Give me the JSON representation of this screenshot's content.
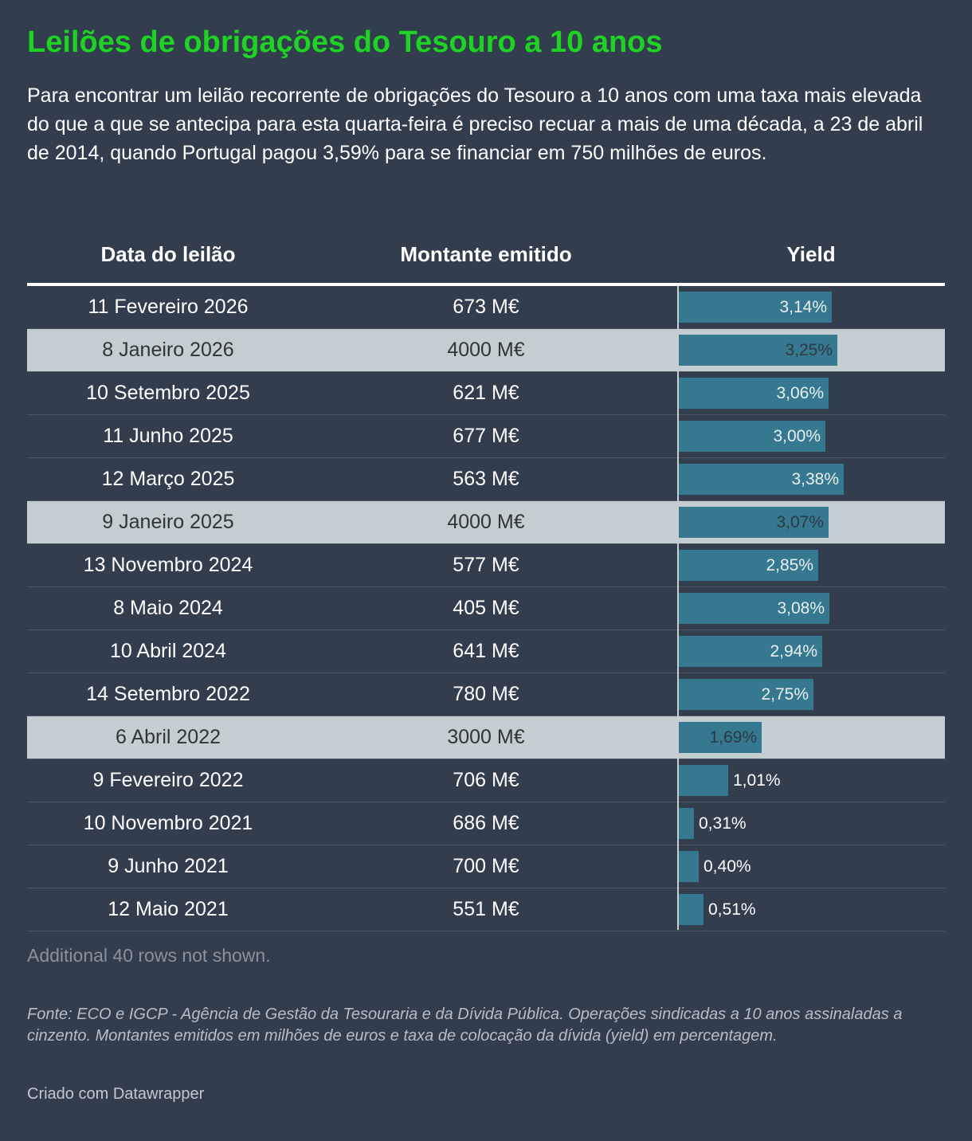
{
  "title": "Leilões de obrigações do Tesouro a 10 anos",
  "intro": "Para encontrar um leilão recorrente de obrigações do Tesouro a 10 anos com uma taxa mais elevada do que a que se antecipa para esta quarta-feira é preciso recuar a mais de uma década, a 23 de abril de 2014, quando Portugal pagou 3,59% para se financiar em 750 milhões de euros.",
  "table": {
    "headers": {
      "date": "Data do leilão",
      "amount": "Montante emitido",
      "yield": "Yield"
    },
    "footer": "Additional 40 rows not shown."
  },
  "colors": {
    "title": "#1ed324",
    "bar": "#35788f",
    "highlight_row": "#c2ced1",
    "background": "#323d4d"
  },
  "chart_data": {
    "type": "table",
    "columns": [
      "Data do leilão",
      "Montante emitido",
      "Yield"
    ],
    "yield_max_for_bars": 3.59,
    "rows": [
      {
        "date": "11 Fevereiro 2026",
        "amount": "673 M€",
        "yield": 3.14,
        "yield_label": "3,14%",
        "syndicated": false
      },
      {
        "date": "8 Janeiro 2026",
        "amount": "4000 M€",
        "yield": 3.25,
        "yield_label": "3,25%",
        "syndicated": true
      },
      {
        "date": "10 Setembro 2025",
        "amount": "621 M€",
        "yield": 3.06,
        "yield_label": "3,06%",
        "syndicated": false
      },
      {
        "date": "11 Junho 2025",
        "amount": "677 M€",
        "yield": 3.0,
        "yield_label": "3,00%",
        "syndicated": false
      },
      {
        "date": "12 Março 2025",
        "amount": "563 M€",
        "yield": 3.38,
        "yield_label": "3,38%",
        "syndicated": false
      },
      {
        "date": "9 Janeiro 2025",
        "amount": "4000 M€",
        "yield": 3.07,
        "yield_label": "3,07%",
        "syndicated": true
      },
      {
        "date": "13 Novembro 2024",
        "amount": "577 M€",
        "yield": 2.85,
        "yield_label": "2,85%",
        "syndicated": false
      },
      {
        "date": "8 Maio 2024",
        "amount": "405 M€",
        "yield": 3.08,
        "yield_label": "3,08%",
        "syndicated": false
      },
      {
        "date": "10 Abril 2024",
        "amount": "641 M€",
        "yield": 2.94,
        "yield_label": "2,94%",
        "syndicated": false
      },
      {
        "date": "14 Setembro 2022",
        "amount": "780 M€",
        "yield": 2.75,
        "yield_label": "2,75%",
        "syndicated": false
      },
      {
        "date": "6 Abril 2022",
        "amount": "3000 M€",
        "yield": 1.69,
        "yield_label": "1,69%",
        "syndicated": true
      },
      {
        "date": "9 Fevereiro 2022",
        "amount": "706 M€",
        "yield": 1.01,
        "yield_label": "1,01%",
        "syndicated": false
      },
      {
        "date": "10 Novembro 2021",
        "amount": "686 M€",
        "yield": 0.31,
        "yield_label": "0,31%",
        "syndicated": false
      },
      {
        "date": "9 Junho 2021",
        "amount": "700 M€",
        "yield": 0.4,
        "yield_label": "0,40%",
        "syndicated": false
      },
      {
        "date": "12 Maio 2021",
        "amount": "551 M€",
        "yield": 0.51,
        "yield_label": "0,51%",
        "syndicated": false
      }
    ]
  },
  "notes": "Fonte: ECO e IGCP - Agência de Gestão da Tesouraria e da Dívida Pública. Operações sindicadas a 10 anos assinaladas a cinzento. Montantes emitidos em milhões de euros e taxa de colocação da dívida (yield) em percentagem.",
  "credit": "Criado com Datawrapper"
}
